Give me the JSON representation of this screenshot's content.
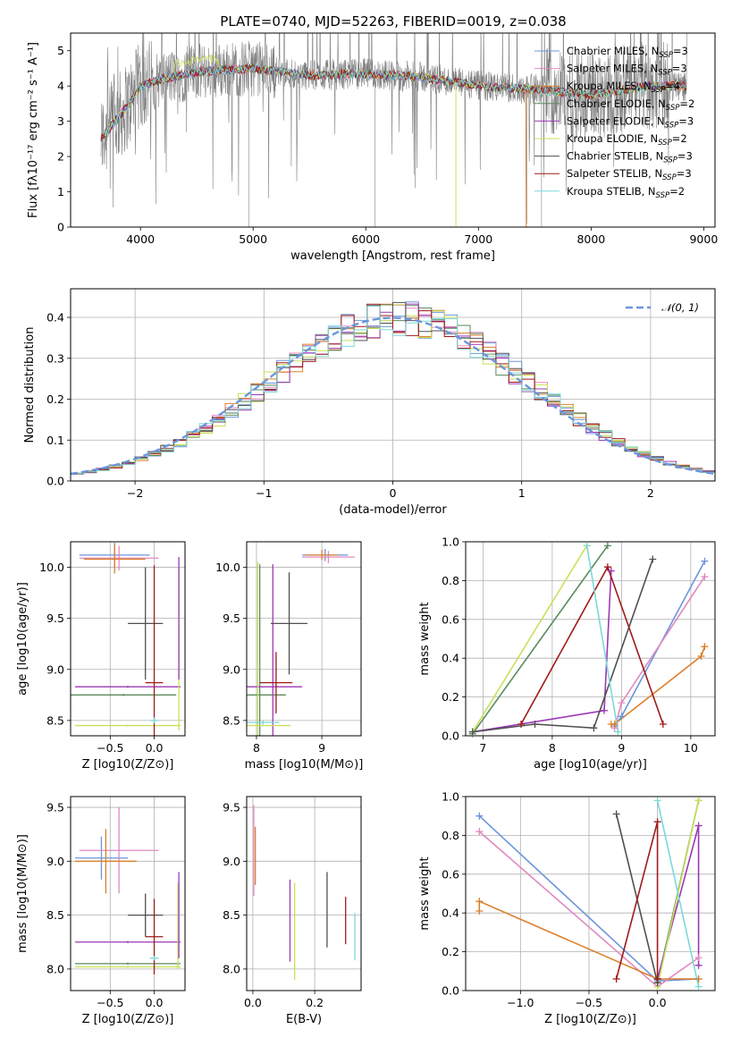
{
  "colors": {
    "Chabrier MILES": "#6b96dc",
    "Salpeter MILES": "#e08ac0",
    "Kroupa MILES": "#dc7f2a",
    "Chabrier ELODIE": "#5a8a5e",
    "Salpeter ELODIE": "#9c38b6",
    "Kroupa ELODIE": "#c8e05a",
    "Chabrier STELIB": "#505050",
    "Salpeter STELIB": "#a01a1a",
    "Kroupa STELIB": "#7dd8d8",
    "data": "#808080",
    "normal": "#6b96dc"
  },
  "spectrum": {
    "title": "PLATE=0740, MJD=52263, FIBERID=0019, z=0.038",
    "xlabel": "wavelength [Angstrom, rest frame]",
    "ylabel": "Flux [fλ10⁻¹⁷ erg cm⁻² s⁻¹ A⁻¹]",
    "xlim": [
      3380,
      9100
    ],
    "ylim": [
      0,
      5.5
    ],
    "xticks": [
      4000,
      5000,
      6000,
      7000,
      8000,
      9000
    ],
    "yticks": [
      0,
      1,
      2,
      3,
      4,
      5
    ],
    "legend": [
      "Chabrier MILES, N_SSP=3",
      "Salpeter MILES, N_SSP=3",
      "Kroupa MILES, N_SSP=4",
      "Chabrier ELODIE, N_SSP=2",
      "Salpeter ELODIE, N_SSP=3",
      "Kroupa ELODIE, N_SSP=2",
      "Chabrier STELIB, N_SSP=3",
      "Salpeter STELIB, N_SSP=3",
      "Kroupa STELIB, N_SSP=2"
    ]
  },
  "chart_data": [
    {
      "type": "line",
      "panel": "spectrum",
      "x_range": [
        3650,
        8850
      ],
      "continuum": [
        [
          3650,
          2.5
        ],
        [
          3800,
          3.1
        ],
        [
          3900,
          3.5
        ],
        [
          4000,
          4.0
        ],
        [
          4200,
          4.2
        ],
        [
          4500,
          4.4
        ],
        [
          5000,
          4.5
        ],
        [
          5500,
          4.3
        ],
        [
          6000,
          4.35
        ],
        [
          6500,
          4.25
        ],
        [
          7000,
          4.0
        ],
        [
          7500,
          3.9
        ],
        [
          8000,
          3.75
        ],
        [
          8500,
          4.0
        ],
        [
          8850,
          4.0
        ]
      ],
      "series": [
        "Chabrier MILES",
        "Salpeter MILES",
        "Kroupa MILES",
        "Chabrier ELODIE",
        "Salpeter ELODIE",
        "Kroupa ELODIE",
        "Chabrier STELIB",
        "Salpeter STELIB",
        "Kroupa STELIB"
      ]
    },
    {
      "type": "line",
      "panel": "residual_histogram",
      "xlabel": "(data-model)/error",
      "ylabel": "Normed distribution",
      "xlim": [
        -2.5,
        2.5
      ],
      "ylim": [
        0,
        0.47
      ],
      "xticks": [
        -2,
        -1,
        0,
        1,
        2
      ],
      "yticks": [
        0.0,
        0.1,
        0.2,
        0.3,
        0.4
      ],
      "legend": "𝒩(0, 1)",
      "bin_width": 0.1
    },
    {
      "type": "scatter",
      "panel": "age_vs_Z",
      "xlabel": "Z [log10(Z/Z⊙)]",
      "ylabel": "age  [log10(age/yr)]",
      "xlim": [
        -0.95,
        0.35
      ],
      "ylim": [
        8.35,
        10.25
      ],
      "xticks": [
        -0.5,
        0.0
      ],
      "yticks": [
        8.5,
        9.0,
        9.5,
        10.0
      ],
      "points": [
        {
          "s": "Chabrier MILES",
          "x": -0.45,
          "y": 10.12,
          "xe": 0.4,
          "ye": 0.12
        },
        {
          "s": "Salpeter MILES",
          "x": -0.4,
          "y": 10.09,
          "xe": 0.45,
          "ye": 0.12
        },
        {
          "s": "Kroupa MILES",
          "x": -0.45,
          "y": 10.08,
          "xe": 0.35,
          "ye": 0.14
        },
        {
          "s": "Chabrier ELODIE",
          "x": -0.35,
          "y": 8.75,
          "xe": 0.6,
          "ye": 0.01
        },
        {
          "s": "Salpeter ELODIE",
          "x": -0.3,
          "y": 8.83,
          "xe": 0.6,
          "ye": 0.01
        },
        {
          "s": "Kroupa ELODIE",
          "x": -0.3,
          "y": 8.45,
          "xe": 0.6,
          "ye": 0.01
        },
        {
          "s": "Chabrier STELIB",
          "x": -0.1,
          "y": 9.45,
          "xe": 0.2,
          "ye": 0.55
        },
        {
          "s": "Salpeter STELIB",
          "x": 0.0,
          "y": 8.87,
          "xe": 0.1,
          "ye": 1.15
        },
        {
          "s": "Kroupa STELIB",
          "x": 0.0,
          "y": 8.5,
          "xe": 0.05,
          "ye": 0.03
        },
        {
          "s": "Kroupa ELODIE",
          "x": 0.28,
          "y": 9.2,
          "xe": 0.0,
          "ye": 0.8
        },
        {
          "s": "Salpeter ELODIE",
          "x": 0.28,
          "y": 9.5,
          "xe": 0.0,
          "ye": 0.6
        }
      ]
    },
    {
      "type": "scatter",
      "panel": "age_vs_mass",
      "xlabel": "mass [log10(M/M⊙)]",
      "xlim": [
        7.85,
        9.6
      ],
      "ylim": [
        8.35,
        10.25
      ],
      "xticks": [
        8,
        9
      ],
      "yticks": [
        8.5,
        9.0,
        9.5,
        10.0
      ],
      "points": [
        {
          "s": "Chabrier MILES",
          "x": 9.05,
          "y": 10.12,
          "xe": 0.35,
          "ye": 0.06
        },
        {
          "s": "Salpeter MILES",
          "x": 9.1,
          "y": 10.1,
          "xe": 0.4,
          "ye": 0.06
        },
        {
          "s": "Kroupa MILES",
          "x": 9.0,
          "y": 10.12,
          "xe": 0.25,
          "ye": 0.05
        },
        {
          "s": "Chabrier ELODIE",
          "x": 8.05,
          "y": 8.75,
          "xe": 0.4,
          "ye": 1.28
        },
        {
          "s": "Salpeter ELODIE",
          "x": 8.25,
          "y": 8.83,
          "xe": 0.45,
          "ye": 1.2
        },
        {
          "s": "Kroupa ELODIE",
          "x": 8.02,
          "y": 8.45,
          "xe": 0.5,
          "ye": 1.6
        },
        {
          "s": "Chabrier STELIB",
          "x": 8.5,
          "y": 9.45,
          "xe": 0.28,
          "ye": 0.5
        },
        {
          "s": "Salpeter STELIB",
          "x": 8.3,
          "y": 8.87,
          "xe": 0.25,
          "ye": 0.3
        },
        {
          "s": "Kroupa STELIB",
          "x": 8.1,
          "y": 8.48,
          "xe": 0.25,
          "ye": 0.02
        }
      ]
    },
    {
      "type": "line",
      "panel": "mass_weight_vs_age",
      "xlabel": "age  [log10(age/yr)]",
      "ylabel": "mass weight",
      "xlim": [
        6.75,
        10.35
      ],
      "ylim": [
        0,
        1
      ],
      "xticks": [
        7,
        8,
        9,
        10
      ],
      "yticks": [
        0.0,
        0.2,
        0.4,
        0.6,
        0.8,
        1.0
      ],
      "series": [
        {
          "name": "Chabrier MILES",
          "x": [
            8.9,
            9.0,
            10.2
          ],
          "y": [
            0.05,
            0.1,
            0.9
          ]
        },
        {
          "name": "Salpeter MILES",
          "x": [
            8.9,
            9.0,
            10.2
          ],
          "y": [
            0.04,
            0.17,
            0.82
          ]
        },
        {
          "name": "Kroupa MILES",
          "x": [
            8.85,
            8.9,
            10.15,
            10.2
          ],
          "y": [
            0.06,
            0.06,
            0.41,
            0.46
          ]
        },
        {
          "name": "Chabrier ELODIE",
          "x": [
            6.85,
            8.8
          ],
          "y": [
            0.01,
            0.98
          ]
        },
        {
          "name": "Salpeter ELODIE",
          "x": [
            6.85,
            8.75,
            8.85
          ],
          "y": [
            0.02,
            0.13,
            0.85
          ]
        },
        {
          "name": "Kroupa ELODIE",
          "x": [
            6.85,
            8.5
          ],
          "y": [
            0.02,
            0.98
          ]
        },
        {
          "name": "Chabrier STELIB",
          "x": [
            6.85,
            7.75,
            8.6,
            9.45
          ],
          "y": [
            0.02,
            0.06,
            0.04,
            0.91
          ]
        },
        {
          "name": "Salpeter STELIB",
          "x": [
            7.55,
            8.8,
            9.6
          ],
          "y": [
            0.06,
            0.87,
            0.06
          ]
        },
        {
          "name": "Kroupa STELIB",
          "x": [
            8.5,
            8.95
          ],
          "y": [
            0.98,
            0.02
          ]
        }
      ]
    },
    {
      "type": "scatter",
      "panel": "mass_vs_Z",
      "xlabel": "Z [log10(Z/Z⊙)]",
      "ylabel": "mass [log10(M/M⊙)]",
      "xlim": [
        -0.95,
        0.35
      ],
      "ylim": [
        7.8,
        9.6
      ],
      "xticks": [
        -0.5,
        0.0
      ],
      "yticks": [
        8.0,
        8.5,
        9.0,
        9.5
      ],
      "points": [
        {
          "s": "Chabrier MILES",
          "x": -0.6,
          "y": 9.03,
          "xe": 0.3,
          "ye": 0.2
        },
        {
          "s": "Salpeter MILES",
          "x": -0.4,
          "y": 9.1,
          "xe": 0.45,
          "ye": 0.4
        },
        {
          "s": "Kroupa MILES",
          "x": -0.55,
          "y": 9.0,
          "xe": 0.35,
          "ye": 0.3
        },
        {
          "s": "Chabrier ELODIE",
          "x": -0.3,
          "y": 8.05,
          "xe": 0.6,
          "ye": 0.01
        },
        {
          "s": "Salpeter ELODIE",
          "x": -0.3,
          "y": 8.25,
          "xe": 0.6,
          "ye": 0.01
        },
        {
          "s": "Kroupa ELODIE",
          "x": -0.3,
          "y": 8.02,
          "xe": 0.6,
          "ye": 0.01
        },
        {
          "s": "Chabrier STELIB",
          "x": -0.1,
          "y": 8.5,
          "xe": 0.2,
          "ye": 0.2
        },
        {
          "s": "Salpeter STELIB",
          "x": 0.0,
          "y": 8.3,
          "xe": 0.1,
          "ye": 0.35
        },
        {
          "s": "Kroupa STELIB",
          "x": 0.0,
          "y": 8.1,
          "xe": 0.05,
          "ye": 0.02
        },
        {
          "s": "Kroupa ELODIE",
          "x": 0.27,
          "y": 8.4,
          "xe": 0.0,
          "ye": 0.4
        },
        {
          "s": "Salpeter ELODIE",
          "x": 0.28,
          "y": 8.5,
          "xe": 0.0,
          "ye": 0.4
        }
      ]
    },
    {
      "type": "scatter",
      "panel": "mass_vs_EBV",
      "xlabel": "E(B-V)",
      "xlim": [
        -0.02,
        0.35
      ],
      "ylim": [
        7.8,
        9.6
      ],
      "xticks": [
        0.0,
        0.2
      ],
      "yticks": [
        8.0,
        8.5,
        9.0,
        9.5
      ],
      "points": [
        {
          "s": "Salpeter MILES",
          "x": 0.003,
          "y": 9.1,
          "xe": 0,
          "ye": 0.42
        },
        {
          "s": "Kroupa MILES",
          "x": 0.008,
          "y": 9.05,
          "xe": 0,
          "ye": 0.27
        },
        {
          "s": "Salpeter ELODIE",
          "x": 0.12,
          "y": 8.45,
          "xe": 0,
          "ye": 0.38
        },
        {
          "s": "Kroupa ELODIE",
          "x": 0.135,
          "y": 8.35,
          "xe": 0,
          "ye": 0.45
        },
        {
          "s": "Chabrier STELIB",
          "x": 0.24,
          "y": 8.55,
          "xe": 0,
          "ye": 0.35
        },
        {
          "s": "Salpeter STELIB",
          "x": 0.3,
          "y": 8.45,
          "xe": 0,
          "ye": 0.22
        },
        {
          "s": "Kroupa STELIB",
          "x": 0.33,
          "y": 8.3,
          "xe": 0,
          "ye": 0.22
        }
      ]
    },
    {
      "type": "line",
      "panel": "mass_weight_vs_Z",
      "xlabel": "Z [log10(Z/Z⊙)]",
      "ylabel": "mass weight",
      "xlim": [
        -1.4,
        0.42
      ],
      "ylim": [
        0,
        1
      ],
      "xticks": [
        -1.0,
        -0.5,
        0.0
      ],
      "yticks": [
        0.0,
        0.2,
        0.4,
        0.6,
        0.8,
        1.0
      ],
      "series": [
        {
          "name": "Chabrier MILES",
          "x": [
            -1.3,
            0.0,
            0.3
          ],
          "y": [
            0.9,
            0.05,
            0.06
          ]
        },
        {
          "name": "Salpeter MILES",
          "x": [
            -1.3,
            0.0,
            0.3
          ],
          "y": [
            0.82,
            0.02,
            0.17
          ]
        },
        {
          "name": "Kroupa MILES",
          "x": [
            -1.3,
            -1.3,
            0.0,
            0.3
          ],
          "y": [
            0.41,
            0.46,
            0.06,
            0.06
          ]
        },
        {
          "name": "Chabrier ELODIE",
          "x": [
            0.0,
            0.3
          ],
          "y": [
            0.04,
            0.98
          ]
        },
        {
          "name": "Salpeter ELODIE",
          "x": [
            0.0,
            0.3,
            0.3
          ],
          "y": [
            0.06,
            0.85,
            0.13
          ]
        },
        {
          "name": "Kroupa ELODIE",
          "x": [
            0.0,
            0.3
          ],
          "y": [
            0.02,
            0.98
          ]
        },
        {
          "name": "Chabrier STELIB",
          "x": [
            -0.3,
            0.0,
            0.0
          ],
          "y": [
            0.91,
            0.04,
            0.06
          ]
        },
        {
          "name": "Salpeter STELIB",
          "x": [
            -0.3,
            0.0,
            0.0
          ],
          "y": [
            0.06,
            0.87,
            0.06
          ]
        },
        {
          "name": "Kroupa STELIB",
          "x": [
            0.0,
            0.3
          ],
          "y": [
            0.98,
            0.02
          ]
        }
      ]
    }
  ]
}
